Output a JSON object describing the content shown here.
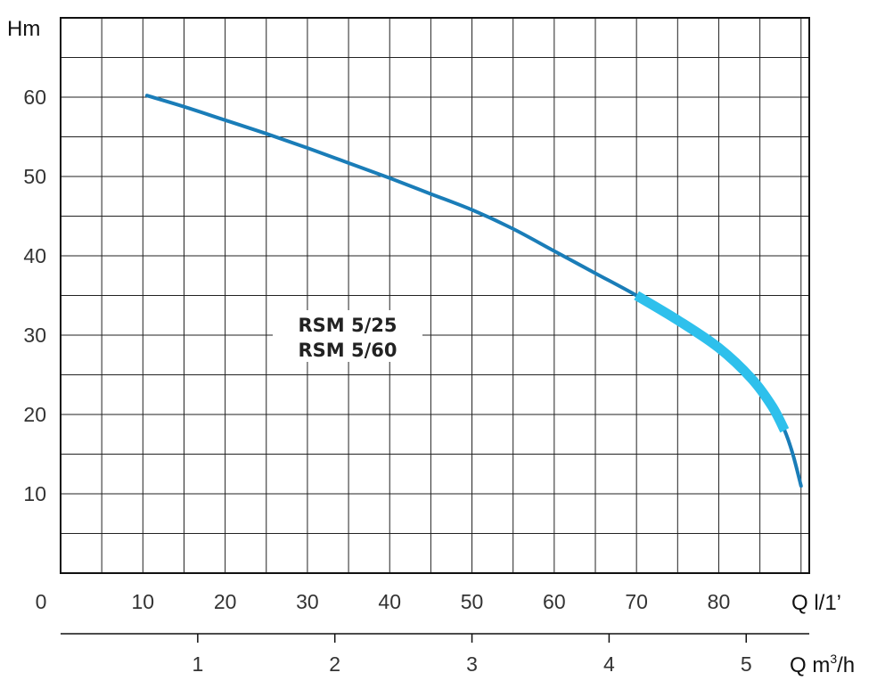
{
  "chart_data": {
    "type": "line",
    "y_unit_label": "Hm",
    "x_unit_label_primary": "Q l/1’",
    "x_unit_label_secondary_prefix": "Q m",
    "x_unit_label_secondary_sup": "3",
    "x_unit_label_secondary_suffix": "/h",
    "x_origin_label": "0",
    "x_primary_ticks": [
      "10",
      "20",
      "30",
      "40",
      "50",
      "60",
      "70",
      "80"
    ],
    "x_secondary_ticks": [
      "1",
      "2",
      "3",
      "4",
      "5"
    ],
    "y_ticks": [
      "10",
      "20",
      "30",
      "40",
      "50",
      "60"
    ],
    "xlim": [
      0,
      91
    ],
    "ylim": [
      0,
      70
    ],
    "grid": true,
    "model_labels": [
      "RSM 5/25",
      "RSM 5/60"
    ],
    "series": [
      {
        "color": "#1a7db8",
        "x": [
          10.5,
          15,
          20,
          25,
          30,
          35,
          40,
          45,
          50,
          55,
          60,
          65,
          70,
          75,
          80,
          84,
          86.5,
          88,
          89,
          90
        ],
        "y": [
          60.2,
          58.8,
          57.1,
          55.4,
          53.6,
          51.7,
          49.8,
          47.8,
          45.8,
          43.4,
          40.6,
          37.8,
          35.0,
          31.9,
          28.4,
          24.5,
          21.0,
          18.0,
          15.0,
          11.0
        ]
      }
    ],
    "recommended_range": {
      "color": "#2ec0ec",
      "x": [
        70,
        75,
        80,
        84,
        86.5,
        88
      ],
      "y": [
        35.0,
        31.9,
        28.4,
        24.5,
        21.0,
        18.0
      ]
    },
    "flow_conversion_lpm_per_m3h": 16.667
  }
}
